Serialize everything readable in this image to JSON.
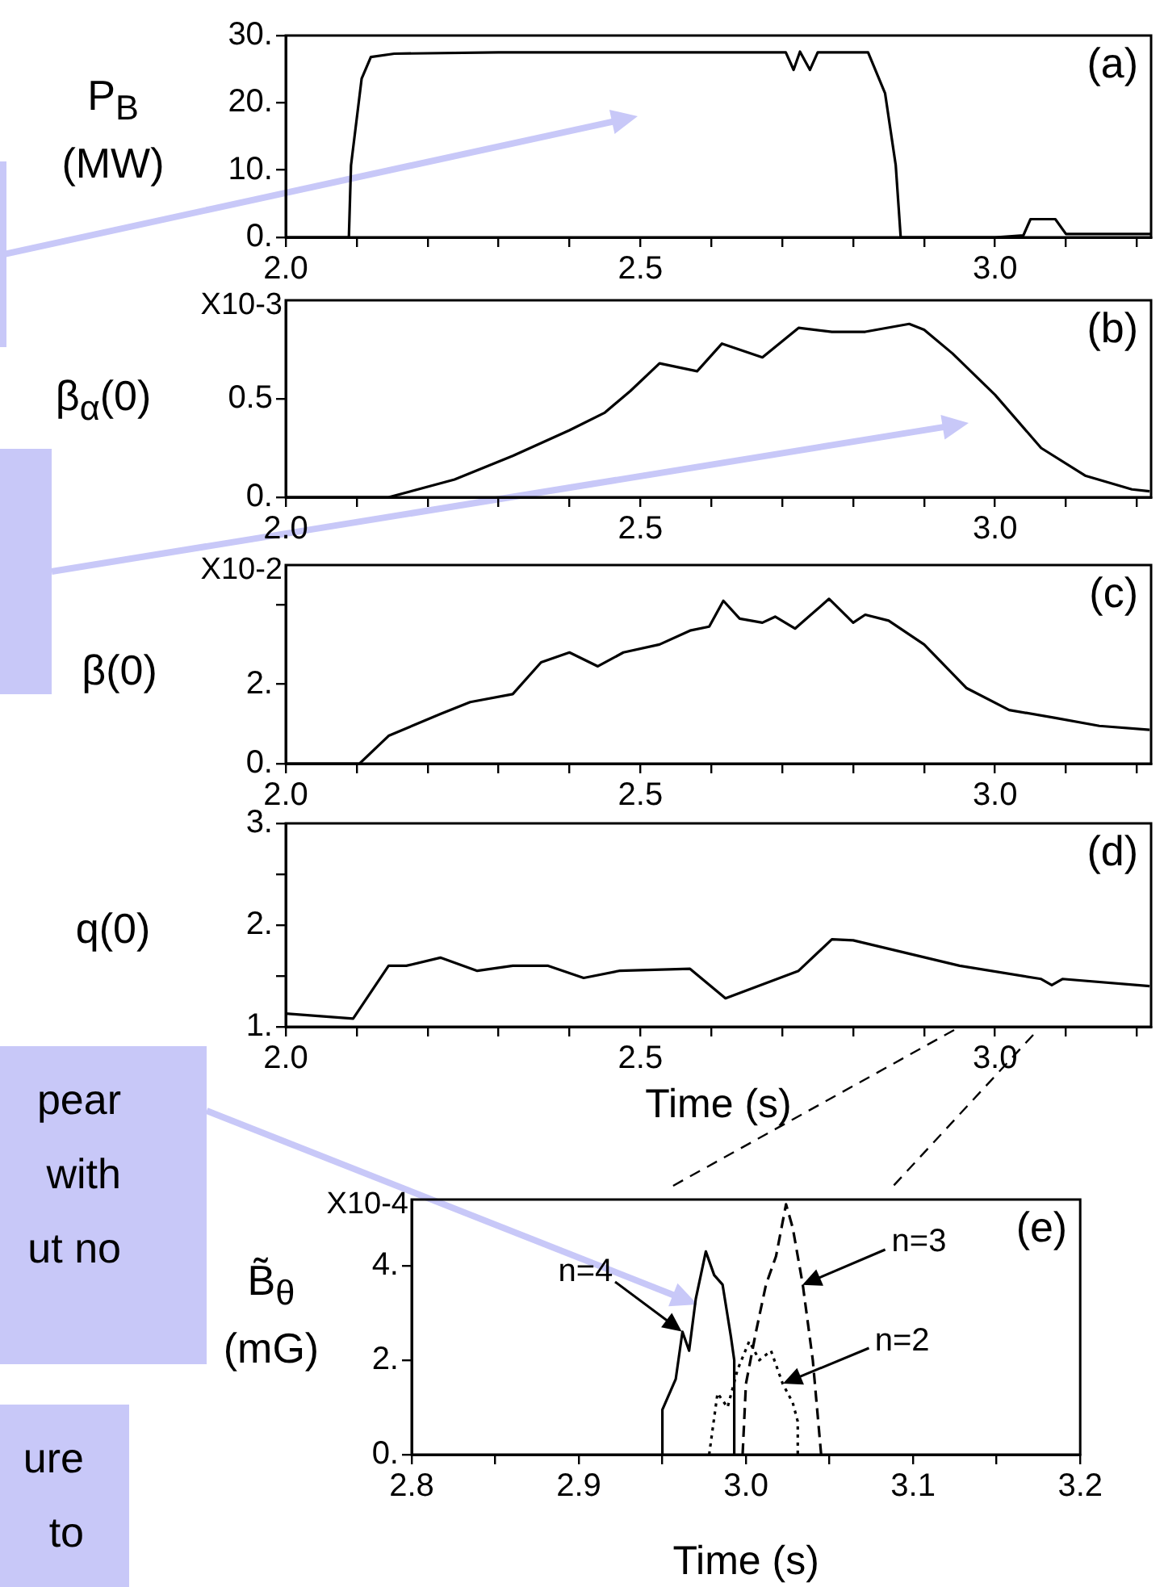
{
  "chart_data": [
    {
      "type": "line",
      "ylabel": "P$_{B}$ (MW)",
      "annotations": [
        "(a)"
      ],
      "xlim": [
        2.0,
        3.22
      ],
      "ylim": [
        0,
        30
      ],
      "xticks": [
        {
          "value": 2.0,
          "label": "2.0"
        },
        {
          "value": 2.1,
          "label": null
        },
        {
          "value": 2.2,
          "label": null
        },
        {
          "value": 2.3,
          "label": null
        },
        {
          "value": 2.4,
          "label": null
        },
        {
          "value": 2.5,
          "label": "2.5"
        },
        {
          "value": 2.6,
          "label": null
        },
        {
          "value": 2.7,
          "label": null
        },
        {
          "value": 2.8,
          "label": null
        },
        {
          "value": 2.9,
          "label": null
        },
        {
          "value": 3.0,
          "label": "3.0"
        },
        {
          "value": 3.1,
          "label": null
        },
        {
          "value": 3.2,
          "label": null
        }
      ],
      "yticks": [
        {
          "value": 0,
          "label": "0."
        },
        {
          "value": 10,
          "label": "10."
        },
        {
          "value": 20,
          "label": "20."
        },
        {
          "value": 30,
          "label": "30."
        }
      ],
      "x": [
        2.0,
        2.089,
        2.092,
        2.107,
        2.12,
        2.153,
        2.3,
        2.5,
        2.705,
        2.716,
        2.725,
        2.739,
        2.75,
        2.821,
        2.845,
        2.86,
        2.867,
        3.0,
        3.04,
        3.05,
        3.085,
        3.1,
        3.22
      ],
      "series": [
        {
          "color": "#000000",
          "values": [
            0,
            0,
            10.7,
            23.6,
            26.8,
            27.3,
            27.5,
            27.5,
            27.5,
            24.9,
            27.6,
            24.9,
            27.5,
            27.5,
            21.4,
            10.7,
            0,
            0,
            0.3,
            2.7,
            2.7,
            0.5,
            0.5
          ]
        }
      ]
    },
    {
      "type": "line",
      "ylabel": "β$_{α}$(0)",
      "annotations": [
        "(b)",
        "X10-3"
      ],
      "xlim": [
        2.0,
        3.22
      ],
      "ylim": [
        0,
        1
      ],
      "xticks": [
        {
          "value": 2.0,
          "label": "2.0"
        },
        {
          "value": 2.1,
          "label": null
        },
        {
          "value": 2.2,
          "label": null
        },
        {
          "value": 2.3,
          "label": null
        },
        {
          "value": 2.4,
          "label": null
        },
        {
          "value": 2.5,
          "label": "2.5"
        },
        {
          "value": 2.6,
          "label": null
        },
        {
          "value": 2.7,
          "label": null
        },
        {
          "value": 2.8,
          "label": null
        },
        {
          "value": 2.9,
          "label": null
        },
        {
          "value": 3.0,
          "label": "3.0"
        },
        {
          "value": 3.1,
          "label": null
        },
        {
          "value": 3.2,
          "label": null
        }
      ],
      "yticks": [
        {
          "value": 0,
          "label": "0."
        },
        0.5
      ],
      "x": [
        2.0,
        2.145,
        2.238,
        2.32,
        2.4,
        2.45,
        2.486,
        2.527,
        2.58,
        2.615,
        2.672,
        2.723,
        2.77,
        2.817,
        2.879,
        2.9,
        2.94,
        3.0,
        3.065,
        3.127,
        3.193,
        3.218
      ],
      "series": [
        {
          "color": "#000000",
          "values": [
            0,
            0,
            0.09,
            0.21,
            0.34,
            0.43,
            0.54,
            0.68,
            0.64,
            0.78,
            0.71,
            0.86,
            0.84,
            0.84,
            0.88,
            0.85,
            0.73,
            0.52,
            0.25,
            0.11,
            0.04,
            0.03
          ]
        }
      ]
    },
    {
      "type": "line",
      "ylabel": "β(0)",
      "annotations": [
        "(c)",
        "X10-2"
      ],
      "xlim": [
        2.0,
        3.22
      ],
      "ylim": [
        0,
        5
      ],
      "xticks": [
        {
          "value": 2.0,
          "label": "2.0"
        },
        {
          "value": 2.1,
          "label": null
        },
        {
          "value": 2.2,
          "label": null
        },
        {
          "value": 2.3,
          "label": null
        },
        {
          "value": 2.4,
          "label": null
        },
        {
          "value": 2.5,
          "label": "2.5"
        },
        {
          "value": 2.6,
          "label": null
        },
        {
          "value": 2.7,
          "label": null
        },
        {
          "value": 2.8,
          "label": null
        },
        {
          "value": 2.9,
          "label": null
        },
        {
          "value": 3.0,
          "label": "3.0"
        },
        {
          "value": 3.1,
          "label": null
        },
        {
          "value": 3.2,
          "label": null
        }
      ],
      "yticks": [
        {
          "value": 0,
          "label": "0."
        },
        {
          "value": 2,
          "label": "2."
        },
        {
          "value": 4,
          "label": null
        }
      ],
      "x": [
        2.0,
        2.104,
        2.145,
        2.218,
        2.26,
        2.32,
        2.36,
        2.4,
        2.44,
        2.476,
        2.527,
        2.57,
        2.597,
        2.617,
        2.64,
        2.672,
        2.69,
        2.718,
        2.766,
        2.8,
        2.817,
        2.85,
        2.9,
        2.96,
        3.02,
        3.085,
        3.147,
        3.218
      ],
      "series": [
        {
          "color": "#000000",
          "values": [
            0,
            0,
            0.7,
            1.25,
            1.55,
            1.75,
            2.55,
            2.8,
            2.45,
            2.8,
            3.0,
            3.35,
            3.45,
            4.1,
            3.65,
            3.55,
            3.7,
            3.4,
            4.15,
            3.55,
            3.75,
            3.6,
            3.0,
            1.9,
            1.35,
            1.15,
            0.95,
            0.85
          ]
        }
      ]
    },
    {
      "type": "line",
      "ylabel": "q(0)",
      "xlabel": "Time (s)",
      "annotations": [
        "(d)"
      ],
      "xlim": [
        2.0,
        3.22
      ],
      "ylim": [
        1,
        3
      ],
      "xticks": [
        {
          "value": 2.0,
          "label": "2.0"
        },
        {
          "value": 2.1,
          "label": null
        },
        {
          "value": 2.2,
          "label": null
        },
        {
          "value": 2.3,
          "label": null
        },
        {
          "value": 2.4,
          "label": null
        },
        {
          "value": 2.5,
          "label": "2.5"
        },
        {
          "value": 2.6,
          "label": null
        },
        {
          "value": 2.7,
          "label": null
        },
        {
          "value": 2.8,
          "label": null
        },
        {
          "value": 2.9,
          "label": null
        },
        {
          "value": 3.0,
          "label": "3.0"
        },
        {
          "value": 3.1,
          "label": null
        },
        {
          "value": 3.2,
          "label": null
        }
      ],
      "yticks": [
        {
          "value": 1,
          "label": "1."
        },
        {
          "value": 1.5,
          "label": null
        },
        {
          "value": 2,
          "label": "2."
        },
        {
          "value": 2.5,
          "label": null
        },
        {
          "value": 3,
          "label": "3."
        }
      ],
      "x": [
        2.0,
        2.095,
        2.145,
        2.17,
        2.218,
        2.27,
        2.32,
        2.37,
        2.42,
        2.47,
        2.57,
        2.62,
        2.723,
        2.77,
        2.8,
        2.95,
        3.065,
        3.08,
        3.095,
        3.218
      ],
      "series": [
        {
          "color": "#000000",
          "values": [
            1.13,
            1.08,
            1.6,
            1.6,
            1.68,
            1.55,
            1.6,
            1.6,
            1.48,
            1.55,
            1.57,
            1.28,
            1.55,
            1.86,
            1.85,
            1.6,
            1.47,
            1.41,
            1.47,
            1.4
          ]
        }
      ]
    },
    {
      "type": "line",
      "ylabel": "B̃$_{θ}$ (mG)",
      "xlabel": "Time (s)",
      "annotations": [
        "(e)",
        "X10-4",
        {
          "text": "n=4",
          "x": 2.962,
          "y": 2.6
        },
        {
          "text": "n=3",
          "x": 3.034,
          "y": 3.6
        },
        {
          "text": "n=2",
          "x": 3.022,
          "y": 1.5
        }
      ],
      "xlim": [
        2.8,
        3.2
      ],
      "ylim": [
        0,
        5.4
      ],
      "xticks": [
        2.8,
        {
          "value": 2.85,
          "label": null
        },
        2.9,
        {
          "value": 2.95,
          "label": null
        },
        {
          "value": 3.0,
          "label": "3.0"
        },
        {
          "value": 3.05,
          "label": null
        },
        3.1,
        {
          "value": 3.15,
          "label": null
        },
        3.2
      ],
      "yticks": [
        {
          "value": 0,
          "label": "0."
        },
        {
          "value": 2,
          "label": "2."
        },
        {
          "value": 4,
          "label": "4."
        }
      ],
      "series": [
        {
          "color": "#000000",
          "line_style": "solid",
          "x": [
            2.95,
            2.95,
            2.958,
            2.962,
            2.966,
            2.97,
            2.976,
            2.981,
            2.986,
            2.991,
            2.993,
            2.993
          ],
          "values": [
            0,
            0.95,
            1.6,
            2.6,
            2.2,
            3.3,
            4.3,
            3.8,
            3.6,
            2.5,
            2.0,
            0
          ]
        },
        {
          "color": "#000000",
          "line_style": "dashed",
          "x": [
            2.998,
            3.0,
            3.006,
            3.012,
            3.018,
            3.024,
            3.028,
            3.034,
            3.04,
            3.045
          ],
          "values": [
            0,
            1.5,
            2.6,
            3.6,
            4.2,
            5.3,
            4.8,
            3.6,
            2.0,
            0
          ]
        },
        {
          "color": "#000000",
          "line_style": "dotted",
          "x": [
            2.978,
            2.983,
            2.989,
            2.995,
            3.002,
            3.008,
            3.015,
            3.022,
            3.028,
            3.031,
            3.031
          ],
          "values": [
            0,
            1.3,
            1.0,
            1.8,
            2.4,
            2.0,
            2.2,
            1.5,
            1.1,
            0.7,
            0
          ]
        }
      ]
    },
    {
      "type": "other",
      "annotations": [
        "pear\nwith\nut no",
        "ure\nto"
      ]
    }
  ]
}
